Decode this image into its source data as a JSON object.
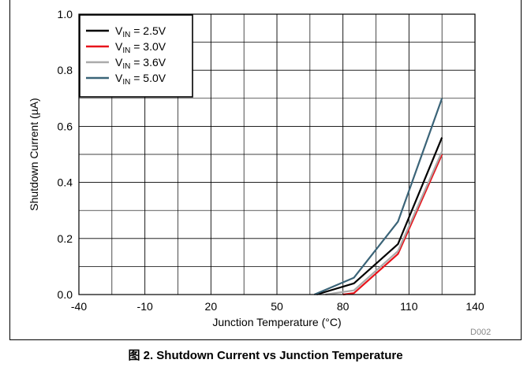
{
  "caption": {
    "prefix": "图 2.",
    "text": "Shutdown Current vs Junction Temperature"
  },
  "source_id": "D002",
  "chart_data": {
    "type": "line",
    "title": "",
    "xlabel": "Junction Temperature (°C)",
    "ylabel": "Shutdown Current (µA)",
    "xlim": [
      -40,
      140
    ],
    "ylim": [
      0,
      1.0
    ],
    "xticks": [
      -40,
      -10,
      20,
      50,
      80,
      110,
      140
    ],
    "xtick_labels": [
      "-40",
      "-10",
      "20",
      "50",
      "80",
      "110",
      "140"
    ],
    "yticks": [
      0,
      0.2,
      0.4,
      0.6,
      0.8,
      1.0
    ],
    "ytick_labels": [
      "0.0",
      "0.2",
      "0.4",
      "0.6",
      "0.8",
      "1.0"
    ],
    "grid": true,
    "minor_grid": true,
    "legend_position": "top-left",
    "series": [
      {
        "name": "VIN = 2.5V",
        "sub": "IN",
        "value_text": "= 2.5V",
        "color": "#000000",
        "x": [
          68,
          85,
          105,
          125
        ],
        "y": [
          0,
          0.04,
          0.18,
          0.56
        ]
      },
      {
        "name": "VIN = 3.0V",
        "sub": "IN",
        "value_text": "= 3.0V",
        "color": "#e8141b",
        "x": [
          80,
          85,
          105,
          125
        ],
        "y": [
          0,
          0.005,
          0.145,
          0.5
        ]
      },
      {
        "name": "VIN = 3.6V",
        "sub": "IN",
        "value_text": "= 3.6V",
        "color": "#aaaaaa",
        "x": [
          72,
          85,
          105,
          125
        ],
        "y": [
          0,
          0.015,
          0.155,
          0.51
        ]
      },
      {
        "name": "VIN = 5.0V",
        "sub": "IN",
        "value_text": "= 5.0V",
        "color": "#3b6478",
        "x": [
          67,
          85,
          105,
          125
        ],
        "y": [
          0,
          0.06,
          0.26,
          0.7
        ]
      }
    ]
  }
}
